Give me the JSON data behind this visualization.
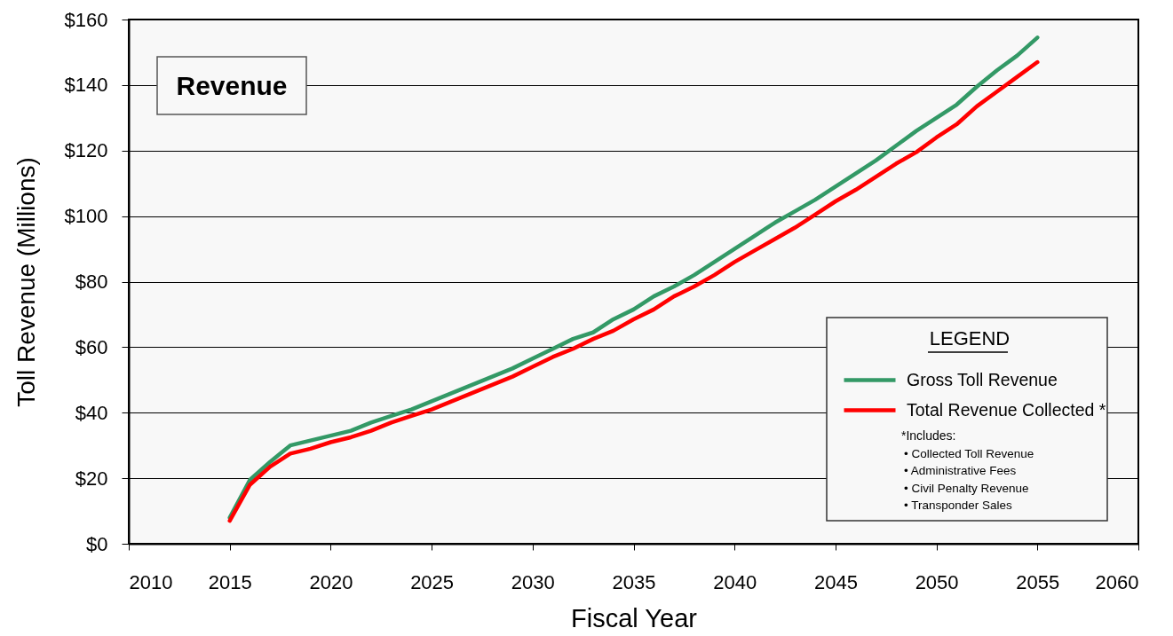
{
  "chart_data": {
    "type": "line",
    "title": "Revenue",
    "xlabel": "Fiscal Year",
    "ylabel": "Toll Revenue (Millions)",
    "legend_title": "LEGEND",
    "x": [
      2015,
      2016,
      2017,
      2018,
      2019,
      2020,
      2021,
      2022,
      2023,
      2024,
      2025,
      2026,
      2027,
      2028,
      2029,
      2030,
      2031,
      2032,
      2033,
      2034,
      2035,
      2036,
      2037,
      2038,
      2039,
      2040,
      2041,
      2042,
      2043,
      2044,
      2045,
      2046,
      2047,
      2048,
      2049,
      2050,
      2051,
      2052,
      2053,
      2054,
      2055
    ],
    "series": [
      {
        "name": "Gross Toll Revenue",
        "color": "#339966",
        "values": [
          8,
          19.5,
          25,
          30,
          31.5,
          33,
          34.5,
          37,
          39,
          41,
          43.5,
          46,
          48.5,
          51,
          53.5,
          56.5,
          59.5,
          62.5,
          64.5,
          68.5,
          71.5,
          75.5,
          78.5,
          82,
          86,
          90,
          94,
          98,
          101.5,
          105,
          109,
          113,
          117,
          121.5,
          126,
          130,
          134,
          139.5,
          144.5,
          149,
          154.5
        ]
      },
      {
        "name": "Total Revenue Collected *",
        "color": "#ff0000",
        "values": [
          7,
          18,
          23.5,
          27.5,
          29,
          31,
          32.5,
          34.5,
          37,
          39,
          41,
          43.5,
          46,
          48.5,
          51,
          54,
          57,
          59.5,
          62.5,
          65,
          68.5,
          71.5,
          75.5,
          78.5,
          82,
          86,
          89.5,
          93,
          96.5,
          100.5,
          104.5,
          108,
          112,
          116,
          119.5,
          124,
          128,
          133.5,
          138,
          142.5,
          147
        ]
      }
    ],
    "xlim": [
      2010,
      2060
    ],
    "xticks": [
      2010,
      2015,
      2020,
      2025,
      2030,
      2035,
      2040,
      2045,
      2050,
      2055,
      2060
    ],
    "ylim": [
      0,
      160
    ],
    "yticks": [
      {
        "value": 0,
        "label": "$0"
      },
      {
        "value": 20,
        "label": "$20"
      },
      {
        "value": 40,
        "label": "$40"
      },
      {
        "value": 60,
        "label": "$60"
      },
      {
        "value": 80,
        "label": "$80"
      },
      {
        "value": 100,
        "label": "$100"
      },
      {
        "value": 120,
        "label": "$120"
      },
      {
        "value": 140,
        "label": "$140"
      },
      {
        "value": 160,
        "label": "$160"
      }
    ],
    "grid": "y",
    "legend": "bottom right",
    "line_style": "solid",
    "annotations": [
      "*Includes:",
      "• Collected Toll Revenue",
      "• Administrative Fees",
      "• Civil Penalty Revenue",
      "• Transponder Sales"
    ]
  }
}
